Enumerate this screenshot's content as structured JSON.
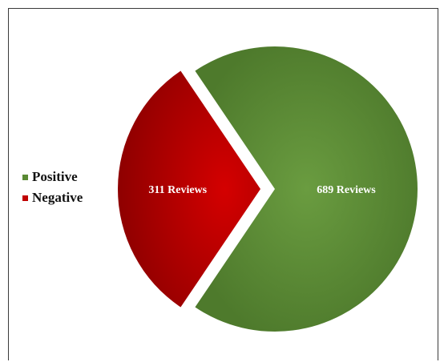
{
  "chart_data": {
    "type": "pie",
    "title": "",
    "categories": [
      "Positive",
      "Negative"
    ],
    "values": [
      689,
      311
    ],
    "data_labels": [
      "689 Reviews",
      "311 Reviews"
    ],
    "colors": [
      "#5a8a34",
      "#c00000"
    ],
    "exploded": true,
    "legend_position": "left"
  },
  "legend": {
    "items": [
      {
        "label": "Positive",
        "color": "#5a8a34"
      },
      {
        "label": "Negative",
        "color": "#c00000"
      }
    ]
  }
}
